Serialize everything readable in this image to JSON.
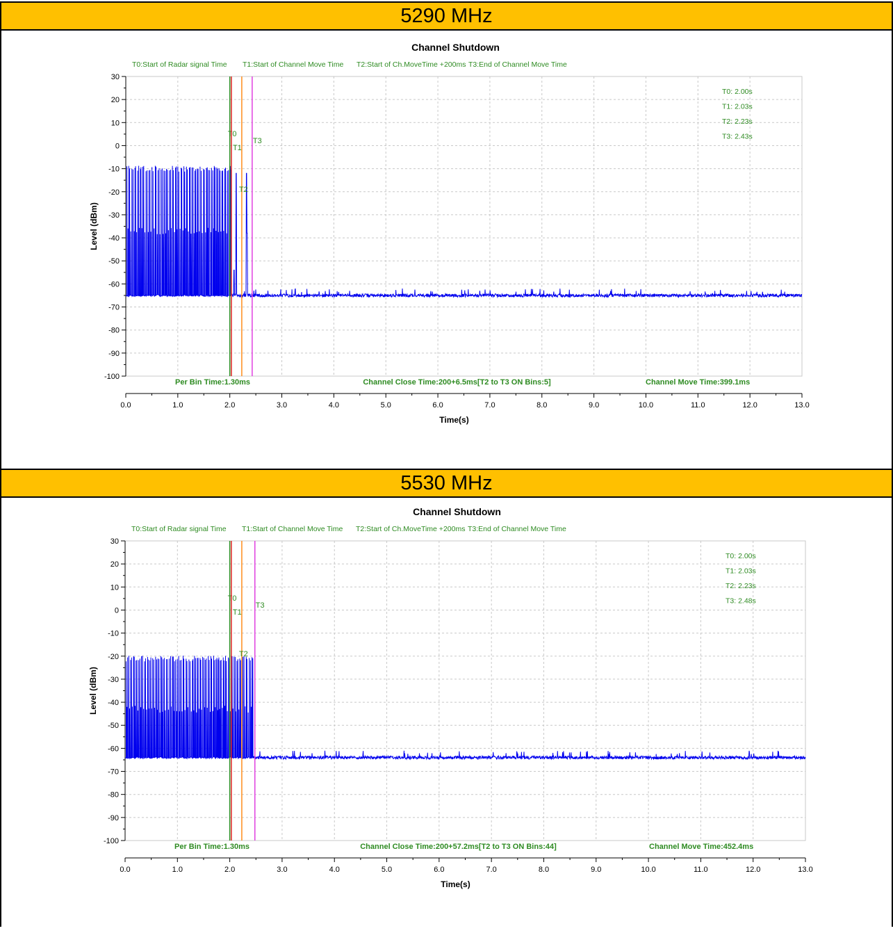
{
  "panels": [
    {
      "header": "5290 MHz",
      "chart_data": {
        "type": "line",
        "title": "Channel Shutdown",
        "xlabel": "Time(s)",
        "ylabel": "Level (dBm)",
        "xlim": [
          0,
          13
        ],
        "ylim": [
          -100,
          30
        ],
        "x_ticks": [
          "0.0",
          "1.0",
          "2.0",
          "3.0",
          "4.0",
          "5.0",
          "6.0",
          "7.0",
          "8.0",
          "9.0",
          "10.0",
          "11.0",
          "12.0",
          "13.0"
        ],
        "y_ticks": [
          "30",
          "20",
          "10",
          "0",
          "-10",
          "-20",
          "-30",
          "-40",
          "-50",
          "-60",
          "-70",
          "-80",
          "-90",
          "-100"
        ],
        "grid": true,
        "legend": [
          "T0:Start of Radar signal Time",
          "T1:Start of Channel Move Time",
          "T2:Start of Ch.MoveTime +200ms",
          "T3:End of Channel Move Time"
        ],
        "readout": [
          "T0: 2.00s",
          "T1: 2.03s",
          "T2: 2.23s",
          "T3: 2.43s"
        ],
        "markers": [
          {
            "label": "T0",
            "x": 2.0,
            "color": "#2e8b22"
          },
          {
            "label": "T1",
            "x": 2.03,
            "color": "#e02020"
          },
          {
            "label": "T2",
            "x": 2.23,
            "color": "#ff8c1a"
          },
          {
            "label": "T3",
            "x": 2.43,
            "color": "#e040e0"
          }
        ],
        "footer": [
          "Per Bin Time:1.30ms",
          "Channel Close Time:200+6.5ms[T2 to T3 ON Bins:5]",
          "Channel Move Time:399.1ms"
        ],
        "series": [
          {
            "color": "#0000ee",
            "noise_floor": -65,
            "burst_end": 2.03,
            "burst_peak": -10,
            "burst_mid": -37,
            "after_spikes": [
              {
                "x": 2.08,
                "y": -54
              },
              {
                "x": 2.12,
                "y": -12
              },
              {
                "x": 2.32,
                "y": -12
              },
              {
                "x": 2.33,
                "y": -38
              }
            ]
          }
        ]
      }
    },
    {
      "header": "5530 MHz",
      "chart_data": {
        "type": "line",
        "title": "Channel Shutdown",
        "xlabel": "Time(s)",
        "ylabel": "Level (dBm)",
        "xlim": [
          0,
          13
        ],
        "ylim": [
          -100,
          30
        ],
        "x_ticks": [
          "0.0",
          "1.0",
          "2.0",
          "3.0",
          "4.0",
          "5.0",
          "6.0",
          "7.0",
          "8.0",
          "9.0",
          "10.0",
          "11.0",
          "12.0",
          "13.0"
        ],
        "y_ticks": [
          "30",
          "20",
          "10",
          "0",
          "-10",
          "-20",
          "-30",
          "-40",
          "-50",
          "-60",
          "-70",
          "-80",
          "-90",
          "-100"
        ],
        "grid": true,
        "legend": [
          "T0:Start of Radar signal Time",
          "T1:Start of Channel Move Time",
          "T2:Start of Ch.MoveTime +200ms",
          "T3:End of Channel Move Time"
        ],
        "readout": [
          "T0: 2.00s",
          "T1: 2.03s",
          "T2: 2.23s",
          "T3: 2.48s"
        ],
        "markers": [
          {
            "label": "T0",
            "x": 2.0,
            "color": "#2e8b22"
          },
          {
            "label": "T1",
            "x": 2.03,
            "color": "#e02020"
          },
          {
            "label": "T2",
            "x": 2.23,
            "color": "#ff8c1a"
          },
          {
            "label": "T3",
            "x": 2.48,
            "color": "#e040e0"
          }
        ],
        "footer": [
          "Per Bin Time:1.30ms",
          "Channel Close Time:200+57.2ms[T2 to T3 ON Bins:44]",
          "Channel Move Time:452.4ms"
        ],
        "series": [
          {
            "color": "#0000ee",
            "noise_floor": -64,
            "burst_end": 2.45,
            "burst_peak": -21,
            "burst_mid": -43,
            "after_spikes": []
          }
        ]
      }
    }
  ]
}
